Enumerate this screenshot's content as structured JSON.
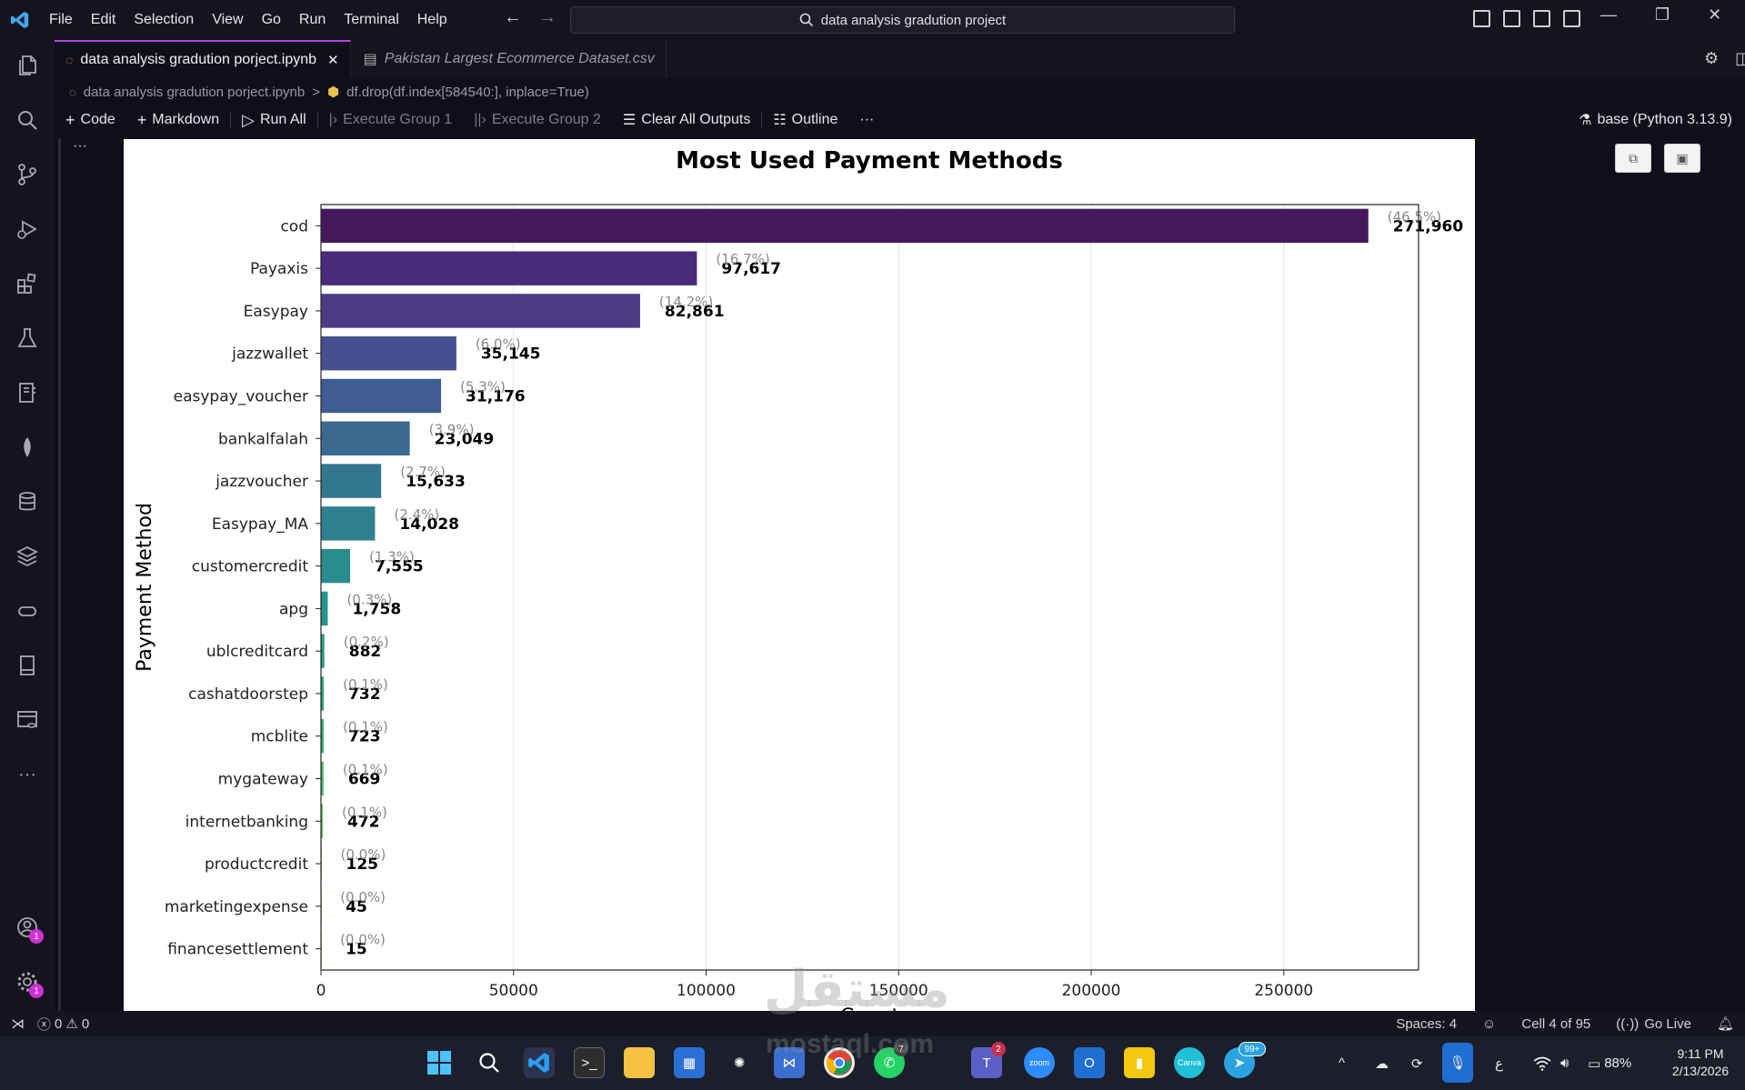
{
  "menu": [
    "File",
    "Edit",
    "Selection",
    "View",
    "Go",
    "Run",
    "Terminal",
    "Help"
  ],
  "search": {
    "label": "data analysis gradution project"
  },
  "tabs": [
    {
      "label": "data analysis gradution porject.ipynb",
      "close": "✕"
    },
    {
      "label": "Pakistan Largest Ecommerce Dataset.csv"
    }
  ],
  "breadcrumb": {
    "file": "data analysis gradution porject.ipynb",
    "separator": ">",
    "cell": "df.drop(df.index[584540:], inplace=True)"
  },
  "toolbar": {
    "code": "Code",
    "markdown": "Markdown",
    "run_all": "Run All",
    "execute_group_1": "Execute Group 1",
    "execute_group_2": "Execute Group 2",
    "clear_outputs": "Clear All Outputs",
    "outline": "Outline",
    "more": "···",
    "kernel": "base (Python 3.13.9)"
  },
  "cell_more": "···",
  "activity_badges": {
    "accounts": "1",
    "manage": "1"
  },
  "activity_more": "···",
  "chart_data": {
    "type": "bar",
    "orientation": "horizontal",
    "title": "Most Used Payment Methods",
    "xlabel": "Count",
    "ylabel": "Payment Method",
    "xlim": [
      0,
      285000
    ],
    "xticks": [
      0,
      50000,
      100000,
      150000,
      200000,
      250000
    ],
    "grid": "x",
    "categories": [
      "cod",
      "Payaxis",
      "Easypay",
      "jazzwallet",
      "easypay_voucher",
      "bankalfalah",
      "jazzvoucher",
      "Easypay_MA",
      "customercredit",
      "apg",
      "ublcreditcard",
      "cashatdoorstep",
      "mcblite",
      "mygateway",
      "internetbanking",
      "productcredit",
      "marketingexpense",
      "financesettlement"
    ],
    "values": [
      271960,
      97617,
      82861,
      35145,
      31176,
      23049,
      15633,
      14028,
      7555,
      1758,
      882,
      732,
      723,
      669,
      472,
      125,
      45,
      15
    ],
    "value_labels": [
      "271,960",
      "97,617",
      "82,861",
      "35,145",
      "31,176",
      "23,049",
      "15,633",
      "14,028",
      "7,555",
      "1,758",
      "882",
      "732",
      "723",
      "669",
      "472",
      "125",
      "45",
      "15"
    ],
    "percent_labels": [
      "(46.5%)",
      "(16.7%)",
      "(14.2%)",
      "(6.0%)",
      "(5.3%)",
      "(3.9%)",
      "(2.7%)",
      "(2.4%)",
      "(1.3%)",
      "(0.3%)",
      "(0.2%)",
      "(0.1%)",
      "(0.1%)",
      "(0.1%)",
      "(0.1%)",
      "(0.0%)",
      "(0.0%)",
      "(0.0%)"
    ],
    "colormap": "viridis",
    "colors": [
      "#45185e",
      "#4a2a7a",
      "#4b3b84",
      "#47508e",
      "#3f5d91",
      "#39698f",
      "#337690",
      "#2f8190",
      "#2a8d8d",
      "#24978a",
      "#22a185",
      "#26aa7e",
      "#34b476",
      "#46bd6b",
      "#5cc65d",
      "#77ce4d",
      "#95d63c",
      "#b5dd2b"
    ]
  },
  "status": {
    "errors": "0",
    "warnings": "0",
    "spaces": "Spaces: 4",
    "cell": "Cell 4 of 95",
    "golive": "Go Live"
  },
  "taskbar": {
    "badges": {
      "teams": "2",
      "telegram": "99+",
      "whatsapp": "7"
    },
    "battery": "88%",
    "lang": "ع",
    "time": "9:11 PM",
    "date": "2/13/2026"
  },
  "watermark": {
    "arabic": "مستقل",
    "latin": "mostaql.com"
  }
}
